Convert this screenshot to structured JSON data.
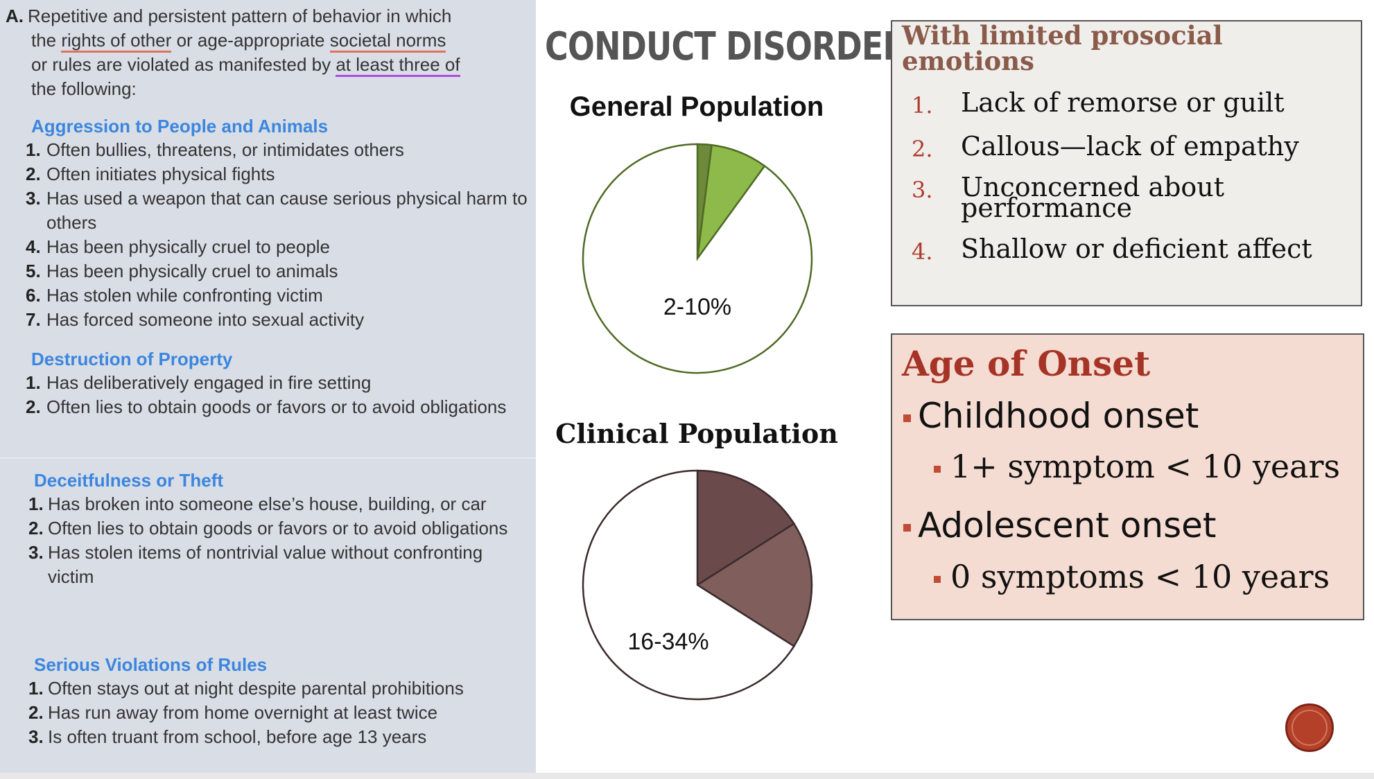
{
  "criteria": {
    "lead": "A.",
    "intro_parts": [
      "Repetitive and persistent pattern of behavior in which",
      "the ",
      "rights of other",
      " or age-appropriate ",
      "societal norms",
      "or rules are violated as manifested by ",
      "at least three of",
      "the following:"
    ],
    "sections": [
      {
        "heading": "Aggression to People and Animals",
        "items": [
          {
            "num": "1.",
            "text": "Often bullies, threatens, or intimidates others"
          },
          {
            "num": "2.",
            "text": "Often initiates physical fights"
          },
          {
            "num": "3.",
            "text": "Has used a weapon that can cause serious physical harm to others"
          },
          {
            "num": "4.",
            "text": "Has been physically cruel to people"
          },
          {
            "num": "5.",
            "text": "Has been physically cruel to animals"
          },
          {
            "num": "6.",
            "text": "Has stolen while confronting victim"
          },
          {
            "num": "7.",
            "text": "Has forced someone into sexual activity"
          }
        ]
      },
      {
        "heading": "Destruction of Property",
        "items": [
          {
            "num": "1.",
            "text": "Has deliberatively engaged in fire setting"
          },
          {
            "num": "2.",
            "text": "Often lies to obtain goods or favors or to avoid obligations"
          }
        ]
      },
      {
        "heading": "Deceitfulness or Theft",
        "items": [
          {
            "num": "1.",
            "text": "Has broken into someone else’s house, building, or car"
          },
          {
            "num": "2.",
            "text": "Often lies to obtain goods or favors or to avoid obligations"
          },
          {
            "num": "3.",
            "text": "Has stolen items of nontrivial value without confronting victim"
          }
        ]
      },
      {
        "heading": "Serious Violations of Rules",
        "items": [
          {
            "num": "1.",
            "text": "Often stays out at night despite parental prohibitions"
          },
          {
            "num": "2.",
            "text": "Has run away from home overnight at least twice"
          },
          {
            "num": "3.",
            "text": "Is often truant from school, before age 13 years"
          }
        ]
      }
    ]
  },
  "title": "CONDUCT DISORDER",
  "charts": {
    "general": {
      "title": "General Population",
      "label": "2-10%",
      "slices": [
        {
          "value": 2,
          "color": "#6d8a3a"
        },
        {
          "value": 8,
          "color": "#8dba4a"
        },
        {
          "value": 90,
          "color": "#ffffff"
        }
      ],
      "stroke": "#4f6a25"
    },
    "clinical": {
      "title": "Clinical Population",
      "label": "16-34%",
      "slices": [
        {
          "value": 16,
          "color": "#6b4a4b"
        },
        {
          "value": 18,
          "color": "#7f5e5c"
        },
        {
          "value": 66,
          "color": "#ffffff"
        }
      ],
      "stroke": "#3b2b2c"
    }
  },
  "prosocial": {
    "heading": "With limited prosocial emotions",
    "items": [
      {
        "num": "1.",
        "text": "Lack of remorse or guilt"
      },
      {
        "num": "2.",
        "text": "Callous—lack of empathy"
      },
      {
        "num": "3.",
        "text": "Unconcerned about performance"
      },
      {
        "num": "4.",
        "text": "Shallow or deficient affect"
      }
    ]
  },
  "onset": {
    "heading": "Age of Onset",
    "childhood": "Childhood onset",
    "childhood_detail": "1+ symptom < 10 years",
    "adolescent": "Adolescent onset",
    "adolescent_detail": "0 symptoms < 10 years"
  },
  "colors": {
    "panel_bg": "#d9dde6",
    "heading_blue": "#3b86de",
    "accent_red": "#b03a2e",
    "onset_bg": "#f5dcd2",
    "prosocial_bg": "#efeeea"
  }
}
